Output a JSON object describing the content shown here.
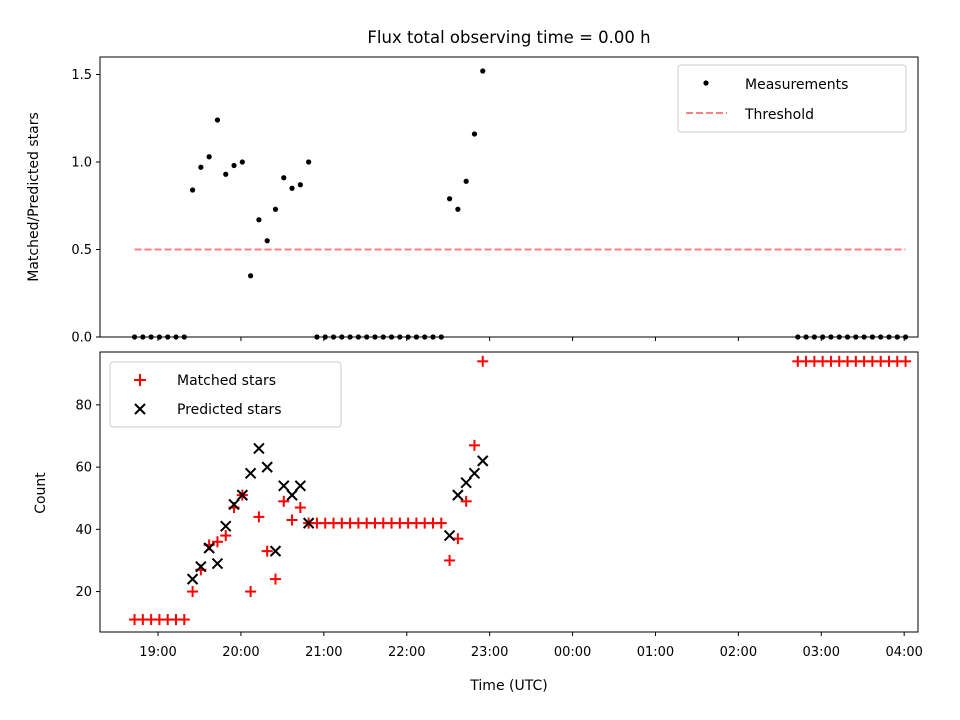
{
  "chart_data": [
    {
      "type": "scatter",
      "title": "Flux total observing time = 0.00 h",
      "xlabel": "",
      "ylabel": "Matched/Predicted stars",
      "ylim": [
        0,
        1.6
      ],
      "yticks": [
        "0.0",
        "0.5",
        "1.0",
        "1.5"
      ],
      "legend_placement": "upper right",
      "series": [
        {
          "name": "Measurements",
          "marker": "dot",
          "color": "#000000",
          "points": [
            [
              "18:43",
              0
            ],
            [
              "18:49",
              0
            ],
            [
              "18:55",
              0
            ],
            [
              "19:01",
              0
            ],
            [
              "19:07",
              0
            ],
            [
              "19:13",
              0
            ],
            [
              "19:19",
              0
            ],
            [
              "19:25",
              0.84
            ],
            [
              "19:31",
              0.97
            ],
            [
              "19:37",
              1.03
            ],
            [
              "19:43",
              1.24
            ],
            [
              "19:49",
              0.93
            ],
            [
              "19:55",
              0.98
            ],
            [
              "20:01",
              1.0
            ],
            [
              "20:07",
              0.35
            ],
            [
              "20:13",
              0.67
            ],
            [
              "20:19",
              0.55
            ],
            [
              "20:25",
              0.73
            ],
            [
              "20:31",
              0.91
            ],
            [
              "20:37",
              0.85
            ],
            [
              "20:43",
              0.87
            ],
            [
              "20:49",
              1.0
            ],
            [
              "20:55",
              0
            ],
            [
              "21:01",
              0
            ],
            [
              "21:07",
              0
            ],
            [
              "21:13",
              0
            ],
            [
              "21:19",
              0
            ],
            [
              "21:25",
              0
            ],
            [
              "21:31",
              0
            ],
            [
              "21:37",
              0
            ],
            [
              "21:43",
              0
            ],
            [
              "21:49",
              0
            ],
            [
              "21:55",
              0
            ],
            [
              "22:01",
              0
            ],
            [
              "22:07",
              0
            ],
            [
              "22:13",
              0
            ],
            [
              "22:19",
              0
            ],
            [
              "22:25",
              0
            ],
            [
              "22:31",
              0.79
            ],
            [
              "22:37",
              0.73
            ],
            [
              "22:43",
              0.89
            ],
            [
              "22:49",
              1.16
            ],
            [
              "22:55",
              1.52
            ],
            [
              "02:43",
              0
            ],
            [
              "02:49",
              0
            ],
            [
              "02:55",
              0
            ],
            [
              "03:01",
              0
            ],
            [
              "03:07",
              0
            ],
            [
              "03:13",
              0
            ],
            [
              "03:19",
              0
            ],
            [
              "03:25",
              0
            ],
            [
              "03:31",
              0
            ],
            [
              "03:37",
              0
            ],
            [
              "03:43",
              0
            ],
            [
              "03:49",
              0
            ],
            [
              "03:55",
              0
            ],
            [
              "04:01",
              0
            ]
          ]
        },
        {
          "name": "Threshold",
          "style": "dashed",
          "color": "#ff7f7f",
          "points": [
            [
              "18:43",
              0.5
            ],
            [
              "04:01",
              0.5
            ]
          ]
        }
      ]
    },
    {
      "type": "scatter",
      "title": "",
      "xlabel": "Time (UTC)",
      "ylabel": "Count",
      "ylim": [
        7,
        97
      ],
      "yticks": [
        "20",
        "40",
        "60",
        "80"
      ],
      "xticks": [
        "19:00",
        "20:00",
        "21:00",
        "22:00",
        "23:00",
        "00:00",
        "01:00",
        "02:00",
        "03:00",
        "04:00"
      ],
      "xlim": [
        "18:18",
        "04:10"
      ],
      "legend_placement": "upper left",
      "series": [
        {
          "name": "Matched stars",
          "marker": "plus",
          "color": "#ff0000",
          "points": [
            [
              "18:43",
              11
            ],
            [
              "18:49",
              11
            ],
            [
              "18:55",
              11
            ],
            [
              "19:01",
              11
            ],
            [
              "19:07",
              11
            ],
            [
              "19:13",
              11
            ],
            [
              "19:19",
              11
            ],
            [
              "19:25",
              20
            ],
            [
              "19:31",
              27
            ],
            [
              "19:37",
              35
            ],
            [
              "19:43",
              36
            ],
            [
              "19:49",
              38
            ],
            [
              "19:55",
              47
            ],
            [
              "20:01",
              51
            ],
            [
              "20:07",
              20
            ],
            [
              "20:13",
              44
            ],
            [
              "20:19",
              33
            ],
            [
              "20:25",
              24
            ],
            [
              "20:31",
              49
            ],
            [
              "20:37",
              43
            ],
            [
              "20:43",
              47
            ],
            [
              "20:49",
              42
            ],
            [
              "20:55",
              42
            ],
            [
              "21:01",
              42
            ],
            [
              "21:07",
              42
            ],
            [
              "21:13",
              42
            ],
            [
              "21:19",
              42
            ],
            [
              "21:25",
              42
            ],
            [
              "21:31",
              42
            ],
            [
              "21:37",
              42
            ],
            [
              "21:43",
              42
            ],
            [
              "21:49",
              42
            ],
            [
              "21:55",
              42
            ],
            [
              "22:01",
              42
            ],
            [
              "22:07",
              42
            ],
            [
              "22:13",
              42
            ],
            [
              "22:19",
              42
            ],
            [
              "22:25",
              42
            ],
            [
              "22:31",
              30
            ],
            [
              "22:37",
              37
            ],
            [
              "22:43",
              49
            ],
            [
              "22:49",
              67
            ],
            [
              "22:55",
              94
            ],
            [
              "02:43",
              94
            ],
            [
              "02:49",
              94
            ],
            [
              "02:55",
              94
            ],
            [
              "03:01",
              94
            ],
            [
              "03:07",
              94
            ],
            [
              "03:13",
              94
            ],
            [
              "03:19",
              94
            ],
            [
              "03:25",
              94
            ],
            [
              "03:31",
              94
            ],
            [
              "03:37",
              94
            ],
            [
              "03:43",
              94
            ],
            [
              "03:49",
              94
            ],
            [
              "03:55",
              94
            ],
            [
              "04:01",
              94
            ]
          ]
        },
        {
          "name": "Predicted stars",
          "marker": "x",
          "color": "#000000",
          "points": [
            [
              "19:25",
              24
            ],
            [
              "19:31",
              28
            ],
            [
              "19:37",
              34
            ],
            [
              "19:43",
              29
            ],
            [
              "19:49",
              41
            ],
            [
              "19:55",
              48
            ],
            [
              "20:01",
              51
            ],
            [
              "20:07",
              58
            ],
            [
              "20:13",
              66
            ],
            [
              "20:19",
              60
            ],
            [
              "20:25",
              33
            ],
            [
              "20:31",
              54
            ],
            [
              "20:37",
              51
            ],
            [
              "20:43",
              54
            ],
            [
              "20:49",
              42
            ],
            [
              "22:31",
              38
            ],
            [
              "22:37",
              51
            ],
            [
              "22:43",
              55
            ],
            [
              "22:49",
              58
            ],
            [
              "22:55",
              62
            ]
          ]
        }
      ]
    }
  ]
}
